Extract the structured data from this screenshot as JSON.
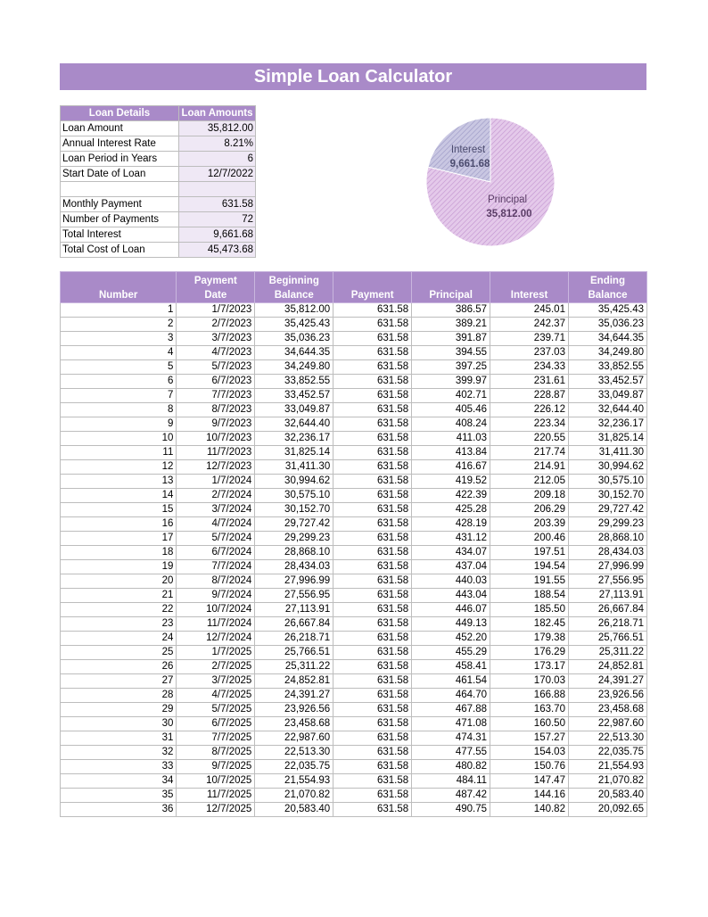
{
  "title": "Simple Loan Calculator",
  "summary": {
    "headers": [
      "Loan Details",
      "Loan Amounts"
    ],
    "loan_amount": {
      "label": "Loan Amount",
      "value": "35,812.00"
    },
    "rate": {
      "label": "Annual Interest Rate",
      "value": "8.21%"
    },
    "period": {
      "label": "Loan Period in Years",
      "value": "6"
    },
    "start": {
      "label": "Start Date of Loan",
      "value": "12/7/2022"
    },
    "monthly": {
      "label": "Monthly Payment",
      "value": "631.58"
    },
    "num_payments": {
      "label": "Number of Payments",
      "value": "72"
    },
    "total_interest": {
      "label": "Total Interest",
      "value": "9,661.68"
    },
    "total_cost": {
      "label": "Total Cost of Loan",
      "value": "45,473.68"
    }
  },
  "pie": {
    "slices": [
      {
        "label": "Interest",
        "value_text": "9,661.68",
        "value": 9661.68,
        "color": "#b8b6d6"
      },
      {
        "label": "Principal",
        "value_text": "35,812.00",
        "value": 35812.0,
        "color": "#d7b4df"
      }
    ]
  },
  "schedule": {
    "headers": {
      "number": "Number",
      "date_1": "Payment",
      "date_2": "Date",
      "begin_1": "Beginning",
      "begin_2": "Balance",
      "payment": "Payment",
      "principal": "Principal",
      "interest": "Interest",
      "end_1": "Ending",
      "end_2": "Balance"
    },
    "rows": [
      [
        "1",
        "1/7/2023",
        "35,812.00",
        "631.58",
        "386.57",
        "245.01",
        "35,425.43"
      ],
      [
        "2",
        "2/7/2023",
        "35,425.43",
        "631.58",
        "389.21",
        "242.37",
        "35,036.23"
      ],
      [
        "3",
        "3/7/2023",
        "35,036.23",
        "631.58",
        "391.87",
        "239.71",
        "34,644.35"
      ],
      [
        "4",
        "4/7/2023",
        "34,644.35",
        "631.58",
        "394.55",
        "237.03",
        "34,249.80"
      ],
      [
        "5",
        "5/7/2023",
        "34,249.80",
        "631.58",
        "397.25",
        "234.33",
        "33,852.55"
      ],
      [
        "6",
        "6/7/2023",
        "33,852.55",
        "631.58",
        "399.97",
        "231.61",
        "33,452.57"
      ],
      [
        "7",
        "7/7/2023",
        "33,452.57",
        "631.58",
        "402.71",
        "228.87",
        "33,049.87"
      ],
      [
        "8",
        "8/7/2023",
        "33,049.87",
        "631.58",
        "405.46",
        "226.12",
        "32,644.40"
      ],
      [
        "9",
        "9/7/2023",
        "32,644.40",
        "631.58",
        "408.24",
        "223.34",
        "32,236.17"
      ],
      [
        "10",
        "10/7/2023",
        "32,236.17",
        "631.58",
        "411.03",
        "220.55",
        "31,825.14"
      ],
      [
        "11",
        "11/7/2023",
        "31,825.14",
        "631.58",
        "413.84",
        "217.74",
        "31,411.30"
      ],
      [
        "12",
        "12/7/2023",
        "31,411.30",
        "631.58",
        "416.67",
        "214.91",
        "30,994.62"
      ],
      [
        "13",
        "1/7/2024",
        "30,994.62",
        "631.58",
        "419.52",
        "212.05",
        "30,575.10"
      ],
      [
        "14",
        "2/7/2024",
        "30,575.10",
        "631.58",
        "422.39",
        "209.18",
        "30,152.70"
      ],
      [
        "15",
        "3/7/2024",
        "30,152.70",
        "631.58",
        "425.28",
        "206.29",
        "29,727.42"
      ],
      [
        "16",
        "4/7/2024",
        "29,727.42",
        "631.58",
        "428.19",
        "203.39",
        "29,299.23"
      ],
      [
        "17",
        "5/7/2024",
        "29,299.23",
        "631.58",
        "431.12",
        "200.46",
        "28,868.10"
      ],
      [
        "18",
        "6/7/2024",
        "28,868.10",
        "631.58",
        "434.07",
        "197.51",
        "28,434.03"
      ],
      [
        "19",
        "7/7/2024",
        "28,434.03",
        "631.58",
        "437.04",
        "194.54",
        "27,996.99"
      ],
      [
        "20",
        "8/7/2024",
        "27,996.99",
        "631.58",
        "440.03",
        "191.55",
        "27,556.95"
      ],
      [
        "21",
        "9/7/2024",
        "27,556.95",
        "631.58",
        "443.04",
        "188.54",
        "27,113.91"
      ],
      [
        "22",
        "10/7/2024",
        "27,113.91",
        "631.58",
        "446.07",
        "185.50",
        "26,667.84"
      ],
      [
        "23",
        "11/7/2024",
        "26,667.84",
        "631.58",
        "449.13",
        "182.45",
        "26,218.71"
      ],
      [
        "24",
        "12/7/2024",
        "26,218.71",
        "631.58",
        "452.20",
        "179.38",
        "25,766.51"
      ],
      [
        "25",
        "1/7/2025",
        "25,766.51",
        "631.58",
        "455.29",
        "176.29",
        "25,311.22"
      ],
      [
        "26",
        "2/7/2025",
        "25,311.22",
        "631.58",
        "458.41",
        "173.17",
        "24,852.81"
      ],
      [
        "27",
        "3/7/2025",
        "24,852.81",
        "631.58",
        "461.54",
        "170.03",
        "24,391.27"
      ],
      [
        "28",
        "4/7/2025",
        "24,391.27",
        "631.58",
        "464.70",
        "166.88",
        "23,926.56"
      ],
      [
        "29",
        "5/7/2025",
        "23,926.56",
        "631.58",
        "467.88",
        "163.70",
        "23,458.68"
      ],
      [
        "30",
        "6/7/2025",
        "23,458.68",
        "631.58",
        "471.08",
        "160.50",
        "22,987.60"
      ],
      [
        "31",
        "7/7/2025",
        "22,987.60",
        "631.58",
        "474.31",
        "157.27",
        "22,513.30"
      ],
      [
        "32",
        "8/7/2025",
        "22,513.30",
        "631.58",
        "477.55",
        "154.03",
        "22,035.75"
      ],
      [
        "33",
        "9/7/2025",
        "22,035.75",
        "631.58",
        "480.82",
        "150.76",
        "21,554.93"
      ],
      [
        "34",
        "10/7/2025",
        "21,554.93",
        "631.58",
        "484.11",
        "147.47",
        "21,070.82"
      ],
      [
        "35",
        "11/7/2025",
        "21,070.82",
        "631.58",
        "487.42",
        "144.16",
        "20,583.40"
      ],
      [
        "36",
        "12/7/2025",
        "20,583.40",
        "631.58",
        "490.75",
        "140.82",
        "20,092.65"
      ]
    ]
  }
}
